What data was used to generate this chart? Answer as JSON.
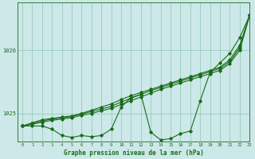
{
  "bg_color": "#cce8e8",
  "grid_color": "#99ccbb",
  "line_color": "#1a6b1a",
  "title": "Graphe pression niveau de la mer (hPa)",
  "xlim": [
    -0.5,
    23
  ],
  "ylim": [
    1024.55,
    1026.75
  ],
  "yticks": [
    1025,
    1026
  ],
  "xticks": [
    0,
    1,
    2,
    3,
    4,
    5,
    6,
    7,
    8,
    9,
    10,
    11,
    12,
    13,
    14,
    15,
    16,
    17,
    18,
    19,
    20,
    21,
    22,
    23
  ],
  "series_wavy": [
    1024.8,
    1024.8,
    1024.8,
    1024.75,
    1024.65,
    1024.62,
    1024.65,
    1024.63,
    1024.65,
    1024.75,
    1025.1,
    1025.25,
    1025.3,
    1024.7,
    1024.58,
    1024.6,
    1024.68,
    1024.72,
    1025.2,
    1025.65,
    1025.8,
    1025.95,
    1026.2,
    1026.55
  ],
  "series_line1": [
    1024.8,
    1024.85,
    1024.9,
    1024.92,
    1024.94,
    1024.96,
    1025.0,
    1025.05,
    1025.1,
    1025.15,
    1025.22,
    1025.28,
    1025.33,
    1025.38,
    1025.43,
    1025.48,
    1025.53,
    1025.58,
    1025.63,
    1025.68,
    1025.73,
    1025.85,
    1026.08,
    1026.55
  ],
  "series_line2": [
    1024.8,
    1024.84,
    1024.88,
    1024.91,
    1024.93,
    1024.95,
    1024.99,
    1025.03,
    1025.07,
    1025.11,
    1025.18,
    1025.24,
    1025.3,
    1025.36,
    1025.41,
    1025.46,
    1025.51,
    1025.56,
    1025.61,
    1025.66,
    1025.71,
    1025.82,
    1026.04,
    1026.55
  ],
  "series_line3": [
    1024.8,
    1024.83,
    1024.86,
    1024.89,
    1024.91,
    1024.93,
    1024.97,
    1025.0,
    1025.04,
    1025.08,
    1025.14,
    1025.2,
    1025.26,
    1025.32,
    1025.38,
    1025.43,
    1025.48,
    1025.53,
    1025.58,
    1025.63,
    1025.68,
    1025.79,
    1026.0,
    1026.55
  ]
}
